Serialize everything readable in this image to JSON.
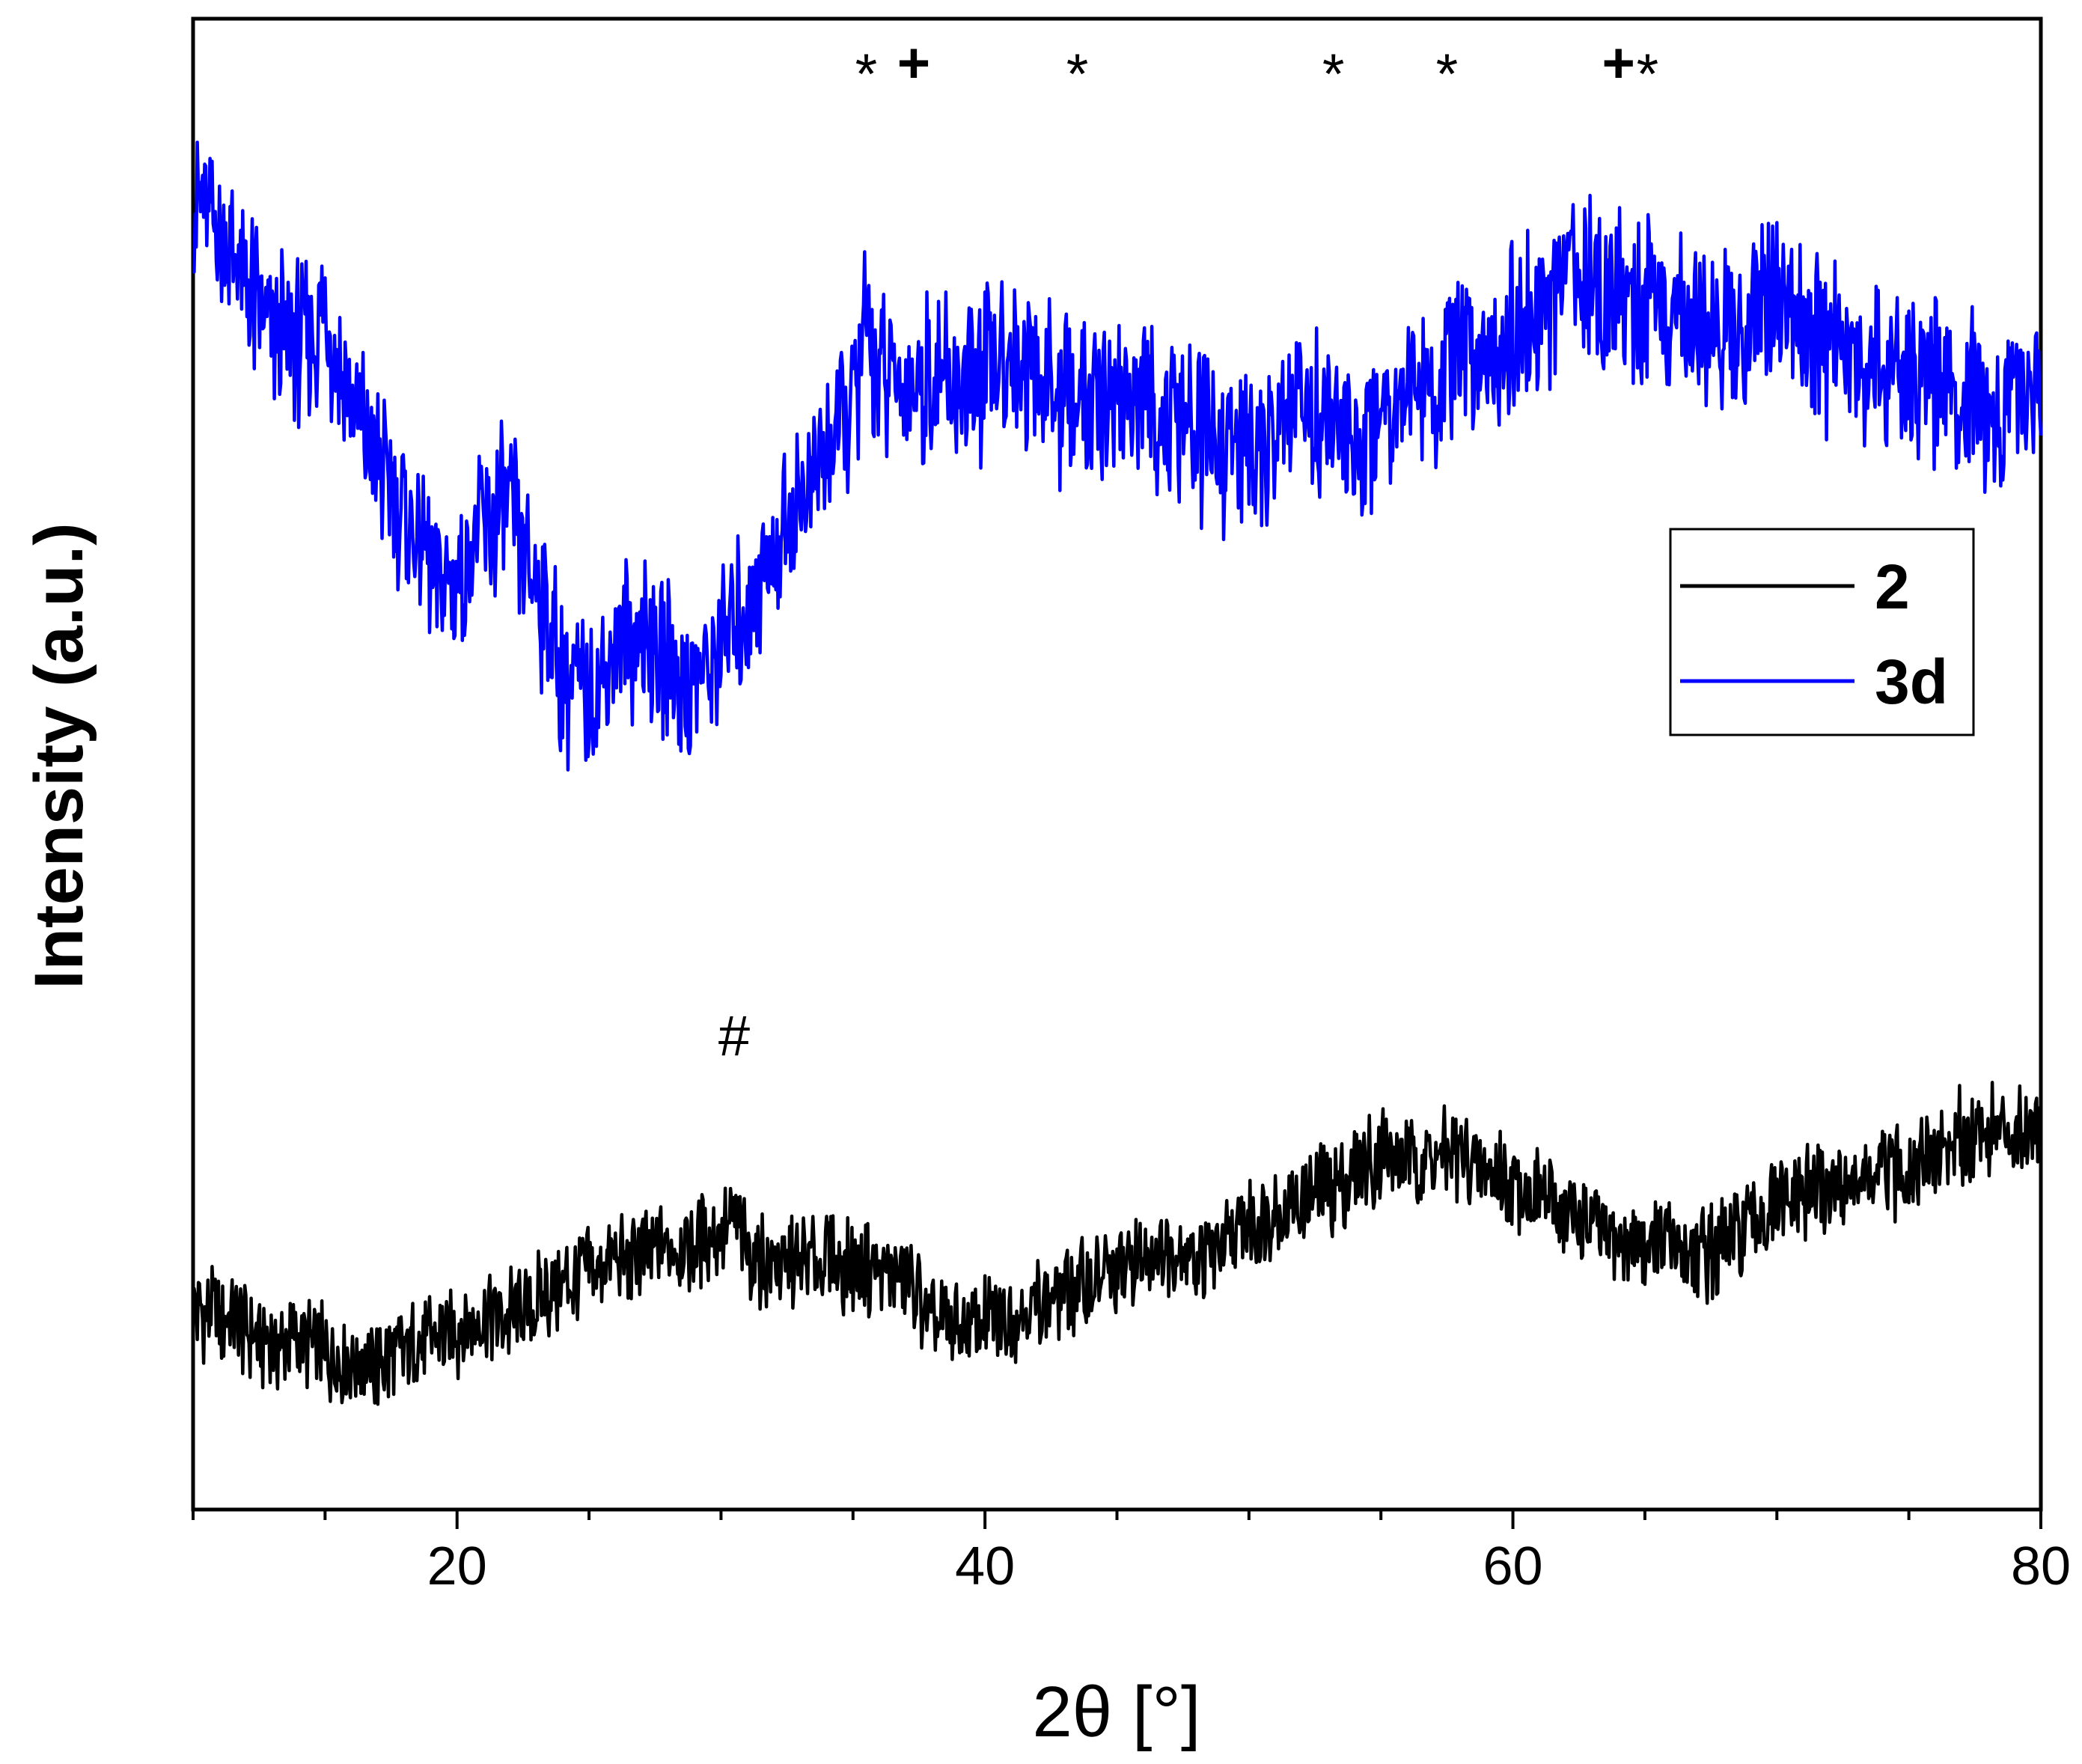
{
  "chart_data": {
    "type": "line",
    "xlabel": "2θ [°]",
    "ylabel": "Intensity (a.u.)",
    "xlim": [
      10,
      80
    ],
    "ylim": [
      0,
      100
    ],
    "xticks": [
      20,
      40,
      60,
      80
    ],
    "grid": false,
    "legend_position": "right",
    "series": [
      {
        "name": "2",
        "color": "#000000",
        "x": [
          10,
          11,
          12,
          13,
          14,
          15,
          16,
          17,
          18,
          19,
          20,
          21,
          22,
          23,
          24,
          25,
          26,
          27,
          28,
          29,
          30,
          30.5,
          31,
          32,
          33,
          34,
          35,
          36,
          37,
          38,
          39,
          40,
          41,
          42,
          43,
          44,
          45,
          46,
          47,
          48,
          49,
          50,
          51,
          52,
          53,
          54,
          55,
          56,
          57,
          58,
          59,
          60,
          61,
          62,
          63,
          64,
          65,
          66,
          67,
          68,
          69,
          70,
          71,
          72,
          73,
          74,
          75,
          76,
          77,
          78,
          79,
          80
        ],
        "values": [
          13.5,
          13,
          12,
          11,
          11.5,
          10.5,
          10,
          9.5,
          10.5,
          11.5,
          12,
          13,
          13,
          14,
          15,
          16,
          16.5,
          17,
          17.5,
          18,
          18.5,
          19.5,
          17.5,
          16.5,
          16.5,
          17,
          16,
          16,
          15.5,
          12.5,
          12,
          12.5,
          13,
          14,
          14.5,
          15,
          16,
          17,
          17.5,
          17,
          17.5,
          19,
          20,
          20.5,
          21.5,
          22.5,
          24,
          23.5,
          23.5,
          23.5,
          22.5,
          22,
          21,
          20,
          19,
          18,
          18,
          17.5,
          17,
          17.5,
          19,
          20,
          21,
          21.5,
          22,
          22.5,
          23,
          24,
          25,
          25.5,
          25.5,
          26
        ]
      },
      {
        "name": "3d",
        "color": "#0000ff",
        "x": [
          10,
          11,
          12,
          13,
          14,
          15,
          16,
          17,
          18,
          19,
          20,
          21,
          22,
          23,
          24,
          25,
          26,
          27,
          28,
          29,
          30,
          31,
          32,
          33,
          34,
          35,
          35.5,
          36,
          37,
          38,
          39,
          40,
          41,
          42,
          43,
          44,
          45,
          46,
          47,
          48,
          49,
          50,
          51,
          52,
          53,
          54,
          55,
          56,
          57,
          58,
          59,
          60,
          61,
          62,
          63,
          64,
          65,
          66,
          67,
          68,
          69,
          70,
          71,
          72,
          73,
          74,
          75,
          76,
          77,
          78,
          79,
          80
        ],
        "values": [
          88,
          86,
          82,
          79,
          78,
          80,
          74,
          70,
          67,
          63,
          62,
          66,
          67,
          62,
          56,
          54,
          58,
          59,
          57,
          55,
          58,
          61,
          64,
          68,
          71,
          74,
          80,
          76,
          75,
          76,
          75,
          76,
          78,
          76,
          74,
          74,
          75,
          74,
          73,
          72,
          71,
          71,
          72,
          74,
          73,
          71,
          74,
          76,
          75,
          77,
          78,
          79,
          80,
          82,
          83,
          82,
          81,
          80,
          80,
          79,
          80,
          81,
          79,
          78,
          77,
          77,
          76,
          76,
          75,
          74,
          74,
          75
        ]
      }
    ],
    "annotations": [
      {
        "text": "*",
        "x": 35.5
      },
      {
        "text": "+",
        "x": 37.3
      },
      {
        "text": "*",
        "x": 43.5
      },
      {
        "text": "*",
        "x": 53.2
      },
      {
        "text": "*",
        "x": 57.5
      },
      {
        "text": "+",
        "x": 64
      },
      {
        "text": "*",
        "x": 65.1
      },
      {
        "text": "#",
        "x": 30.5
      }
    ]
  }
}
